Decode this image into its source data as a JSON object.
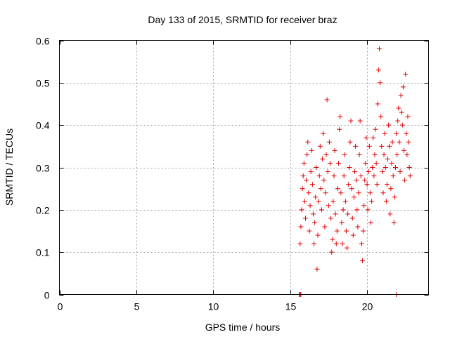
{
  "chart_data": {
    "type": "scatter",
    "title": "Day 133 of 2015, SRMTID for receiver braz",
    "xlabel": "GPS time / hours",
    "ylabel": "SRMTID / TECUs",
    "xlim": [
      0,
      24
    ],
    "ylim": [
      0,
      0.6
    ],
    "xticks": [
      0,
      5,
      10,
      15,
      20
    ],
    "xtick_labels": [
      "0",
      "5",
      "10",
      "15",
      "20"
    ],
    "yticks": [
      0,
      0.1,
      0.2,
      0.3,
      0.4,
      0.5,
      0.6
    ],
    "ytick_labels": [
      "0",
      "0.1",
      "0.2",
      "0.3",
      "0.4",
      "0.5",
      "0.6"
    ],
    "grid": true,
    "marker": "+",
    "color": "#e00000",
    "series": [
      {
        "name": "SRMTID",
        "points": [
          [
            15.6,
            0.0
          ],
          [
            15.65,
            0.0
          ],
          [
            15.7,
            0.0
          ],
          [
            21.9,
            0.0
          ],
          [
            15.65,
            0.12
          ],
          [
            15.7,
            0.16
          ],
          [
            15.75,
            0.2
          ],
          [
            15.8,
            0.25
          ],
          [
            15.85,
            0.28
          ],
          [
            15.9,
            0.31
          ],
          [
            15.95,
            0.22
          ],
          [
            16.0,
            0.18
          ],
          [
            16.05,
            0.27
          ],
          [
            16.1,
            0.33
          ],
          [
            16.15,
            0.36
          ],
          [
            16.2,
            0.24
          ],
          [
            16.25,
            0.15
          ],
          [
            16.3,
            0.21
          ],
          [
            16.35,
            0.29
          ],
          [
            16.4,
            0.34
          ],
          [
            16.45,
            0.26
          ],
          [
            16.5,
            0.19
          ],
          [
            16.55,
            0.12
          ],
          [
            16.6,
            0.17
          ],
          [
            16.65,
            0.23
          ],
          [
            16.7,
            0.3
          ],
          [
            16.75,
            0.06
          ],
          [
            16.8,
            0.14
          ],
          [
            16.85,
            0.22
          ],
          [
            16.9,
            0.28
          ],
          [
            16.95,
            0.35
          ],
          [
            17.0,
            0.25
          ],
          [
            17.05,
            0.2
          ],
          [
            17.1,
            0.32
          ],
          [
            17.15,
            0.38
          ],
          [
            17.2,
            0.27
          ],
          [
            17.25,
            0.16
          ],
          [
            17.3,
            0.24
          ],
          [
            17.35,
            0.33
          ],
          [
            17.4,
            0.46
          ],
          [
            17.45,
            0.29
          ],
          [
            17.5,
            0.21
          ],
          [
            17.55,
            0.36
          ],
          [
            17.6,
            0.31
          ],
          [
            17.65,
            0.18
          ],
          [
            17.7,
            0.1
          ],
          [
            17.75,
            0.13
          ],
          [
            17.8,
            0.22
          ],
          [
            17.85,
            0.28
          ],
          [
            17.9,
            0.34
          ],
          [
            17.95,
            0.19
          ],
          [
            18.0,
            0.12
          ],
          [
            18.05,
            0.15
          ],
          [
            18.1,
            0.25
          ],
          [
            18.15,
            0.31
          ],
          [
            18.2,
            0.39
          ],
          [
            18.25,
            0.42
          ],
          [
            18.3,
            0.24
          ],
          [
            18.35,
            0.17
          ],
          [
            18.4,
            0.12
          ],
          [
            18.45,
            0.2
          ],
          [
            18.5,
            0.28
          ],
          [
            18.55,
            0.33
          ],
          [
            18.6,
            0.22
          ],
          [
            18.65,
            0.15
          ],
          [
            18.7,
            0.11
          ],
          [
            18.75,
            0.19
          ],
          [
            18.8,
            0.26
          ],
          [
            18.85,
            0.3
          ],
          [
            18.9,
            0.36
          ],
          [
            18.95,
            0.41
          ],
          [
            19.0,
            0.25
          ],
          [
            19.05,
            0.18
          ],
          [
            19.1,
            0.14
          ],
          [
            19.15,
            0.23
          ],
          [
            19.2,
            0.29
          ],
          [
            19.25,
            0.35
          ],
          [
            19.3,
            0.27
          ],
          [
            19.35,
            0.2
          ],
          [
            19.4,
            0.16
          ],
          [
            19.45,
            0.24
          ],
          [
            19.5,
            0.33
          ],
          [
            19.55,
            0.41
          ],
          [
            19.6,
            0.28
          ],
          [
            19.65,
            0.12
          ],
          [
            19.7,
            0.08
          ],
          [
            19.75,
            0.15
          ],
          [
            19.8,
            0.21
          ],
          [
            19.85,
            0.27
          ],
          [
            19.9,
            0.31
          ],
          [
            19.95,
            0.37
          ],
          [
            20.0,
            0.26
          ],
          [
            20.05,
            0.2
          ],
          [
            20.1,
            0.29
          ],
          [
            20.15,
            0.35
          ],
          [
            20.2,
            0.24
          ],
          [
            20.25,
            0.17
          ],
          [
            20.3,
            0.22
          ],
          [
            20.35,
            0.3
          ],
          [
            20.4,
            0.37
          ],
          [
            20.45,
            0.28
          ],
          [
            20.5,
            0.33
          ],
          [
            20.55,
            0.39
          ],
          [
            20.6,
            0.31
          ],
          [
            20.65,
            0.26
          ],
          [
            20.7,
            0.45
          ],
          [
            20.75,
            0.53
          ],
          [
            20.8,
            0.58
          ],
          [
            20.85,
            0.5
          ],
          [
            20.9,
            0.42
          ],
          [
            20.95,
            0.35
          ],
          [
            21.0,
            0.29
          ],
          [
            21.05,
            0.24
          ],
          [
            21.1,
            0.33
          ],
          [
            21.15,
            0.38
          ],
          [
            21.2,
            0.3
          ],
          [
            21.25,
            0.22
          ],
          [
            21.3,
            0.26
          ],
          [
            21.35,
            0.32
          ],
          [
            21.4,
            0.4
          ],
          [
            21.45,
            0.35
          ],
          [
            21.5,
            0.19
          ],
          [
            21.55,
            0.25
          ],
          [
            21.6,
            0.31
          ],
          [
            21.65,
            0.36
          ],
          [
            21.7,
            0.28
          ],
          [
            21.75,
            0.17
          ],
          [
            21.8,
            0.23
          ],
          [
            21.85,
            0.3
          ],
          [
            21.9,
            0.38
          ],
          [
            21.95,
            0.33
          ],
          [
            22.0,
            0.41
          ],
          [
            22.05,
            0.44
          ],
          [
            22.1,
            0.36
          ],
          [
            22.15,
            0.29
          ],
          [
            22.2,
            0.47
          ],
          [
            22.25,
            0.43
          ],
          [
            22.3,
            0.4
          ],
          [
            22.35,
            0.49
          ],
          [
            22.4,
            0.34
          ],
          [
            22.45,
            0.27
          ],
          [
            22.5,
            0.52
          ],
          [
            22.55,
            0.38
          ],
          [
            22.6,
            0.33
          ],
          [
            22.65,
            0.42
          ],
          [
            22.7,
            0.36
          ],
          [
            22.75,
            0.3
          ],
          [
            22.8,
            0.28
          ]
        ]
      }
    ]
  }
}
